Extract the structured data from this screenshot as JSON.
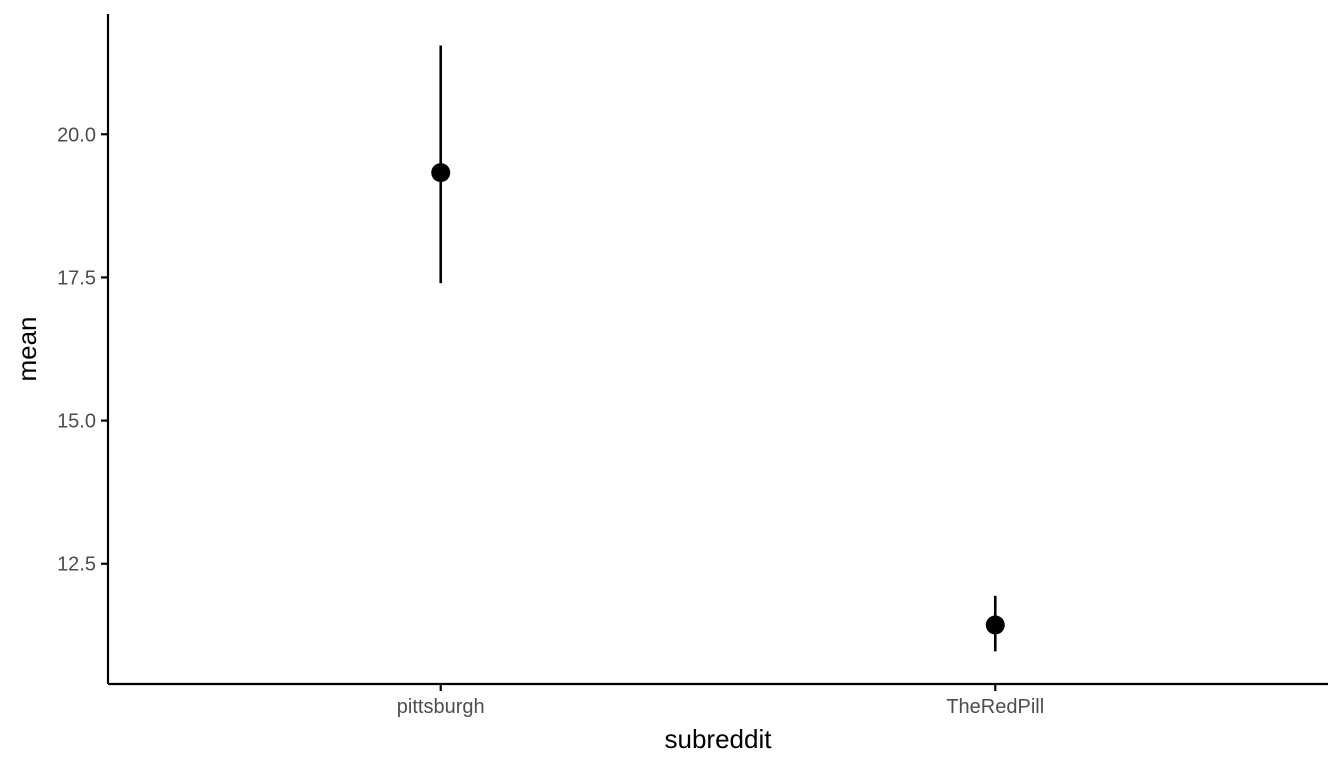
{
  "chart_data": {
    "type": "scatter",
    "title": "",
    "xlabel": "subreddit",
    "ylabel": "mean",
    "categories": [
      "pittsburgh",
      "TheRedPill"
    ],
    "points": [
      {
        "category": "pittsburgh",
        "mean": 19.33,
        "lower": 17.4,
        "upper": 21.55
      },
      {
        "category": "TheRedPill",
        "mean": 11.43,
        "lower": 10.97,
        "upper": 11.94
      }
    ],
    "ylim": [
      10.4,
      22.1
    ],
    "yticks": [
      12.5,
      15.0,
      17.5,
      20.0
    ],
    "ytick_labels": [
      "12.5",
      "15.0",
      "17.5",
      "20.0"
    ],
    "grid": false,
    "legend": "none",
    "colors": {
      "points": "#000000",
      "errorbars": "#000000",
      "axis": "#000000",
      "tick_text": "#4d4d4d"
    }
  }
}
